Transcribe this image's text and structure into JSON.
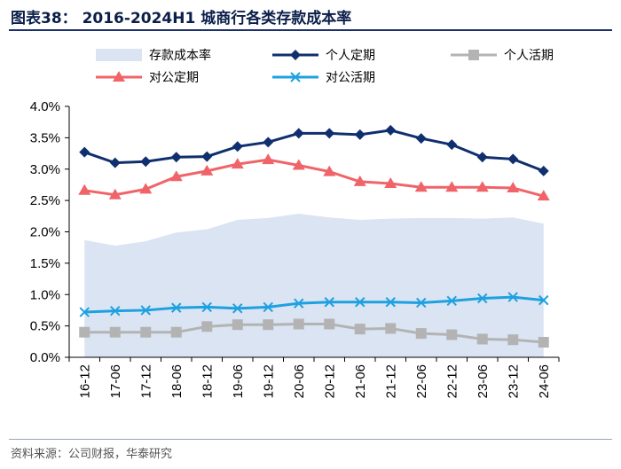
{
  "header": {
    "title": "图表38：  2016-2024H1 城商行各类存款成本率"
  },
  "footer": {
    "source": "资料来源：公司财报，华泰研究"
  },
  "chart_data": {
    "type": "line",
    "title": "2016-2024H1 城商行各类存款成本率",
    "categories": [
      "16-12",
      "17-06",
      "17-12",
      "18-06",
      "18-12",
      "19-06",
      "19-12",
      "20-06",
      "20-12",
      "21-06",
      "21-12",
      "22-06",
      "22-12",
      "23-06",
      "23-12",
      "24-06"
    ],
    "ylim": [
      0,
      4.0
    ],
    "yticks": [
      "0.0%",
      "0.5%",
      "1.0%",
      "1.5%",
      "2.0%",
      "2.5%",
      "3.0%",
      "3.5%",
      "4.0%"
    ],
    "yticks_values": [
      0,
      0.5,
      1.0,
      1.5,
      2.0,
      2.5,
      3.0,
      3.5,
      4.0
    ],
    "legend_position": "top",
    "series": [
      {
        "name": "存款成本率",
        "kind": "area",
        "color": "#dbe4f3",
        "values": [
          1.87,
          1.78,
          1.85,
          1.99,
          2.04,
          2.19,
          2.22,
          2.29,
          2.23,
          2.19,
          2.21,
          2.22,
          2.22,
          2.21,
          2.23,
          2.13
        ]
      },
      {
        "name": "个人定期",
        "kind": "line",
        "marker": "diamond",
        "color": "#0f2f6e",
        "values": [
          3.27,
          3.1,
          3.12,
          3.19,
          3.2,
          3.36,
          3.43,
          3.57,
          3.57,
          3.55,
          3.62,
          3.49,
          3.39,
          3.19,
          3.16,
          2.97
        ]
      },
      {
        "name": "个人活期",
        "kind": "line",
        "marker": "square",
        "color": "#b3b3b3",
        "values": [
          0.4,
          0.4,
          0.4,
          0.4,
          0.49,
          0.52,
          0.52,
          0.53,
          0.53,
          0.45,
          0.46,
          0.38,
          0.36,
          0.29,
          0.28,
          0.24
        ]
      },
      {
        "name": "对公定期",
        "kind": "line",
        "marker": "triangle",
        "color": "#f06469",
        "values": [
          2.66,
          2.59,
          2.68,
          2.88,
          2.97,
          3.08,
          3.15,
          3.06,
          2.96,
          2.8,
          2.77,
          2.71,
          2.71,
          2.71,
          2.7,
          2.57
        ]
      },
      {
        "name": "对公活期",
        "kind": "line",
        "marker": "x",
        "color": "#1ea1e0",
        "values": [
          0.72,
          0.74,
          0.75,
          0.79,
          0.8,
          0.78,
          0.8,
          0.86,
          0.88,
          0.88,
          0.88,
          0.87,
          0.9,
          0.94,
          0.96,
          0.91
        ]
      }
    ]
  }
}
